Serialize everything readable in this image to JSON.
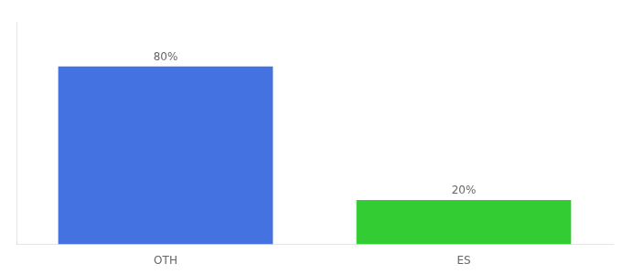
{
  "chart_data": {
    "type": "bar",
    "categories": [
      "OTH",
      "ES"
    ],
    "values": [
      80,
      20
    ],
    "value_labels": [
      "80%",
      "20%"
    ],
    "colors": [
      "#4472e0",
      "#33cc33"
    ],
    "ylim": [
      0,
      100
    ],
    "grid": false,
    "data_labels": true,
    "tick_labels": "x"
  }
}
